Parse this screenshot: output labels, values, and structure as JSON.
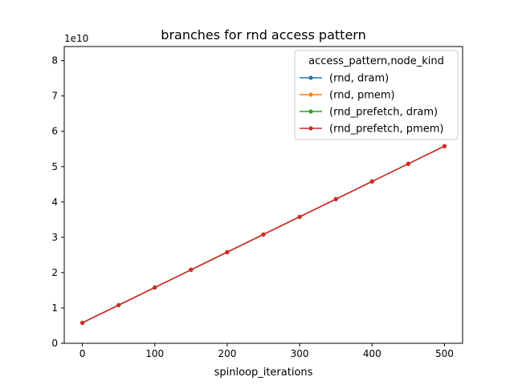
{
  "chart_data": {
    "type": "line",
    "title": "branches for rnd access pattern",
    "xlabel": "spinloop_iterations",
    "ylabel": "",
    "y_multiplier_label": "1e10",
    "x": [
      0,
      50,
      100,
      150,
      200,
      250,
      300,
      350,
      400,
      450,
      500
    ],
    "xlim": [
      -25,
      525
    ],
    "ylim": [
      0,
      8.4
    ],
    "x_ticks": [
      0,
      100,
      200,
      300,
      400,
      500
    ],
    "y_ticks": [
      0,
      1,
      2,
      3,
      4,
      5,
      6,
      7,
      8
    ],
    "grid": false,
    "legend": {
      "title": "access_pattern,node_kind",
      "placement": "top-right"
    },
    "series": [
      {
        "name": "(rnd, dram)",
        "color": "#1f77b4",
        "values": [
          0.58,
          1.08,
          1.58,
          2.08,
          2.58,
          3.08,
          3.58,
          4.08,
          4.58,
          5.08,
          5.58
        ]
      },
      {
        "name": "(rnd, pmem)",
        "color": "#ff7f0e",
        "values": [
          0.58,
          1.08,
          1.58,
          2.08,
          2.58,
          3.08,
          3.58,
          4.08,
          4.58,
          5.08,
          5.58
        ]
      },
      {
        "name": "(rnd_prefetch, dram)",
        "color": "#2ca02c",
        "values": [
          0.58,
          1.08,
          1.58,
          2.08,
          2.58,
          3.08,
          3.58,
          4.08,
          4.58,
          5.08,
          5.58
        ]
      },
      {
        "name": "(rnd_prefetch, pmem)",
        "color": "#d62728",
        "values": [
          0.58,
          1.08,
          1.58,
          2.08,
          2.58,
          3.08,
          3.58,
          4.08,
          4.58,
          5.08,
          5.58
        ]
      }
    ]
  }
}
